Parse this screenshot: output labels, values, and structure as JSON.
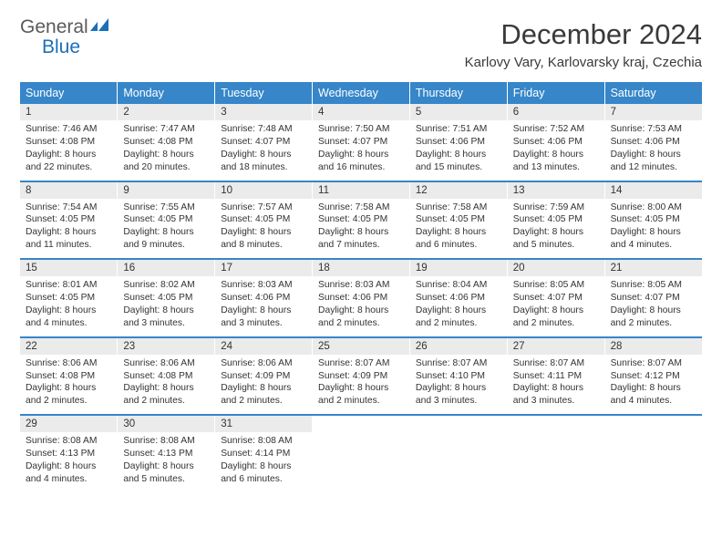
{
  "logo": {
    "part1": "General",
    "part2": "Blue"
  },
  "title": "December 2024",
  "location": "Karlovy Vary, Karlovarsky kraj, Czechia",
  "colors": {
    "header_bg": "#3686c9",
    "header_text": "#ffffff",
    "daynum_bg": "#ebebeb",
    "row_divider": "#3686c9",
    "logo_gray": "#5a5a5a",
    "logo_blue": "#1b6fb8"
  },
  "weekdays": [
    "Sunday",
    "Monday",
    "Tuesday",
    "Wednesday",
    "Thursday",
    "Friday",
    "Saturday"
  ],
  "weeks": [
    [
      {
        "n": "1",
        "sr": "7:46 AM",
        "ss": "4:08 PM",
        "dl": "8 hours and 22 minutes."
      },
      {
        "n": "2",
        "sr": "7:47 AM",
        "ss": "4:08 PM",
        "dl": "8 hours and 20 minutes."
      },
      {
        "n": "3",
        "sr": "7:48 AM",
        "ss": "4:07 PM",
        "dl": "8 hours and 18 minutes."
      },
      {
        "n": "4",
        "sr": "7:50 AM",
        "ss": "4:07 PM",
        "dl": "8 hours and 16 minutes."
      },
      {
        "n": "5",
        "sr": "7:51 AM",
        "ss": "4:06 PM",
        "dl": "8 hours and 15 minutes."
      },
      {
        "n": "6",
        "sr": "7:52 AM",
        "ss": "4:06 PM",
        "dl": "8 hours and 13 minutes."
      },
      {
        "n": "7",
        "sr": "7:53 AM",
        "ss": "4:06 PM",
        "dl": "8 hours and 12 minutes."
      }
    ],
    [
      {
        "n": "8",
        "sr": "7:54 AM",
        "ss": "4:05 PM",
        "dl": "8 hours and 11 minutes."
      },
      {
        "n": "9",
        "sr": "7:55 AM",
        "ss": "4:05 PM",
        "dl": "8 hours and 9 minutes."
      },
      {
        "n": "10",
        "sr": "7:57 AM",
        "ss": "4:05 PM",
        "dl": "8 hours and 8 minutes."
      },
      {
        "n": "11",
        "sr": "7:58 AM",
        "ss": "4:05 PM",
        "dl": "8 hours and 7 minutes."
      },
      {
        "n": "12",
        "sr": "7:58 AM",
        "ss": "4:05 PM",
        "dl": "8 hours and 6 minutes."
      },
      {
        "n": "13",
        "sr": "7:59 AM",
        "ss": "4:05 PM",
        "dl": "8 hours and 5 minutes."
      },
      {
        "n": "14",
        "sr": "8:00 AM",
        "ss": "4:05 PM",
        "dl": "8 hours and 4 minutes."
      }
    ],
    [
      {
        "n": "15",
        "sr": "8:01 AM",
        "ss": "4:05 PM",
        "dl": "8 hours and 4 minutes."
      },
      {
        "n": "16",
        "sr": "8:02 AM",
        "ss": "4:05 PM",
        "dl": "8 hours and 3 minutes."
      },
      {
        "n": "17",
        "sr": "8:03 AM",
        "ss": "4:06 PM",
        "dl": "8 hours and 3 minutes."
      },
      {
        "n": "18",
        "sr": "8:03 AM",
        "ss": "4:06 PM",
        "dl": "8 hours and 2 minutes."
      },
      {
        "n": "19",
        "sr": "8:04 AM",
        "ss": "4:06 PM",
        "dl": "8 hours and 2 minutes."
      },
      {
        "n": "20",
        "sr": "8:05 AM",
        "ss": "4:07 PM",
        "dl": "8 hours and 2 minutes."
      },
      {
        "n": "21",
        "sr": "8:05 AM",
        "ss": "4:07 PM",
        "dl": "8 hours and 2 minutes."
      }
    ],
    [
      {
        "n": "22",
        "sr": "8:06 AM",
        "ss": "4:08 PM",
        "dl": "8 hours and 2 minutes."
      },
      {
        "n": "23",
        "sr": "8:06 AM",
        "ss": "4:08 PM",
        "dl": "8 hours and 2 minutes."
      },
      {
        "n": "24",
        "sr": "8:06 AM",
        "ss": "4:09 PM",
        "dl": "8 hours and 2 minutes."
      },
      {
        "n": "25",
        "sr": "8:07 AM",
        "ss": "4:09 PM",
        "dl": "8 hours and 2 minutes."
      },
      {
        "n": "26",
        "sr": "8:07 AM",
        "ss": "4:10 PM",
        "dl": "8 hours and 3 minutes."
      },
      {
        "n": "27",
        "sr": "8:07 AM",
        "ss": "4:11 PM",
        "dl": "8 hours and 3 minutes."
      },
      {
        "n": "28",
        "sr": "8:07 AM",
        "ss": "4:12 PM",
        "dl": "8 hours and 4 minutes."
      }
    ],
    [
      {
        "n": "29",
        "sr": "8:08 AM",
        "ss": "4:13 PM",
        "dl": "8 hours and 4 minutes."
      },
      {
        "n": "30",
        "sr": "8:08 AM",
        "ss": "4:13 PM",
        "dl": "8 hours and 5 minutes."
      },
      {
        "n": "31",
        "sr": "8:08 AM",
        "ss": "4:14 PM",
        "dl": "8 hours and 6 minutes."
      },
      null,
      null,
      null,
      null
    ]
  ],
  "labels": {
    "sunrise": "Sunrise: ",
    "sunset": "Sunset: ",
    "daylight": "Daylight: "
  }
}
